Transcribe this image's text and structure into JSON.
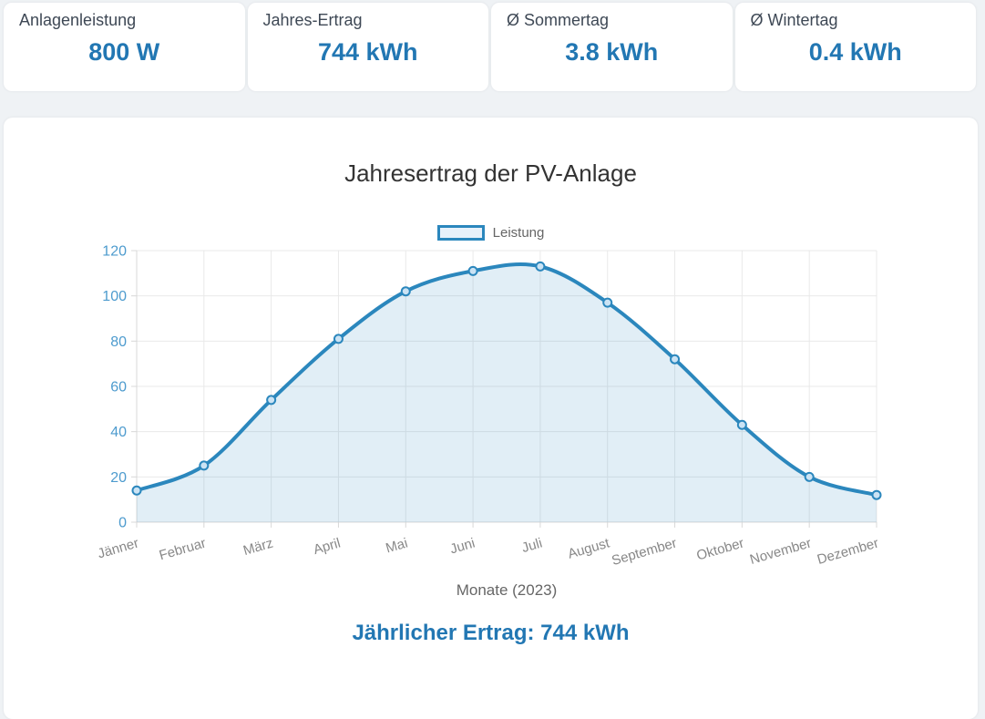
{
  "stats": [
    {
      "label": "Anlagenleistung",
      "value": "800 W"
    },
    {
      "label": "Jahres-Ertrag",
      "value": "744 kWh"
    },
    {
      "label": "Ø Sommertag",
      "value": "3.8 kWh"
    },
    {
      "label": "Ø Wintertag",
      "value": "0.4 kWh"
    }
  ],
  "chart": {
    "title": "Jahresertrag der PV-Anlage",
    "legend_label": "Leistung",
    "annotation": "Jährlicher Ertrag: 744 kWh"
  },
  "chart_data": {
    "type": "area",
    "title": "Jahresertrag der PV-Anlage",
    "categories": [
      "Jänner",
      "Februar",
      "März",
      "April",
      "Mai",
      "Juni",
      "Juli",
      "August",
      "September",
      "Oktober",
      "November",
      "Dezember"
    ],
    "series": [
      {
        "name": "Leistung",
        "values": [
          14,
          25,
          54,
          81,
          102,
          111,
          113,
          97,
          72,
          43,
          20,
          12
        ]
      }
    ],
    "xlabel": "Monate (2023)",
    "ylabel": "",
    "ylim": [
      0,
      120
    ],
    "y_ticks": [
      0,
      20,
      40,
      60,
      80,
      100,
      120
    ],
    "grid": true,
    "legend_position": "top",
    "annotation_total": "744 kWh",
    "colors": {
      "line": "#2b87bd",
      "fill": "rgba(43,135,189,0.14)",
      "marker_fill": "#cbe3f4",
      "legend_fill": "#e7f1fa",
      "value_text": "#2277b3",
      "y_tick_text": "#4d9bce",
      "x_tick_text": "#888888",
      "axis_title_text": "#666666",
      "gridline": "#e9e9e9",
      "axis_line": "#d8d8d8"
    }
  }
}
